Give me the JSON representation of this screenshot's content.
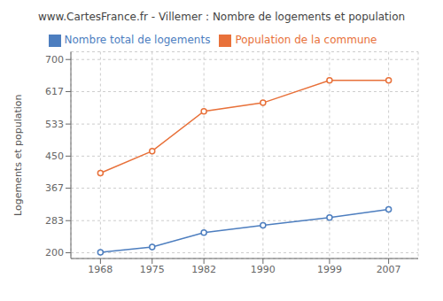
{
  "chart_data": {
    "type": "line",
    "title": "www.CartesFrance.fr - Villemer : Nombre de logements et population",
    "y_label": "Logements et population",
    "x": [
      1968,
      1975,
      1982,
      1990,
      1999,
      2007
    ],
    "series": [
      {
        "name": "Nombre total de logements",
        "color": "#4d7ebf",
        "values": [
          201,
          215,
          252,
          271,
          291,
          312
        ],
        "marker": "circle"
      },
      {
        "name": "Population de la commune",
        "color": "#e8713a",
        "values": [
          406,
          463,
          566,
          588,
          646,
          646
        ],
        "marker": "circle"
      }
    ],
    "xlim": [
      1964,
      2011
    ],
    "xticks": [
      1968,
      1975,
      1982,
      1990,
      1999,
      2007
    ],
    "ylim": [
      185,
      720
    ],
    "yticks": [
      200,
      283,
      367,
      450,
      533,
      617,
      700
    ],
    "grid": true,
    "legend": "top"
  }
}
